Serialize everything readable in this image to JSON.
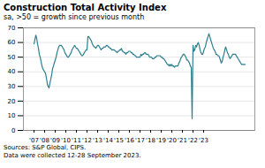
{
  "chart_data": {
    "type": "line",
    "title": "Construction Total Activity Index",
    "subtitle": "sa, >50 = growth since previous month",
    "caption": "Sources: S&P Global, CIPS.\nData were collected 12-28 September 2023.",
    "categories": [
      "'07",
      null,
      null,
      null,
      null,
      null,
      null,
      null,
      null,
      null,
      null,
      null,
      "'08",
      null,
      null,
      null,
      null,
      null,
      null,
      null,
      null,
      null,
      null,
      null,
      "'09",
      null,
      null,
      null,
      null,
      null,
      null,
      null,
      null,
      null,
      null,
      null,
      "'10",
      null,
      null,
      null,
      null,
      null,
      null,
      null,
      null,
      null,
      null,
      null,
      "'11",
      null,
      null,
      null,
      null,
      null,
      null,
      null,
      null,
      null,
      null,
      null,
      "'12",
      null,
      null,
      null,
      null,
      null,
      null,
      null,
      null,
      null,
      null,
      null,
      "'13",
      null,
      null,
      null,
      null,
      null,
      null,
      null,
      null,
      null,
      null,
      null,
      "'14",
      null,
      null,
      null,
      null,
      null,
      null,
      null,
      null,
      null,
      null,
      null,
      "'15",
      null,
      null,
      null,
      null,
      null,
      null,
      null,
      null,
      null,
      null,
      null,
      "'16",
      null,
      null,
      null,
      null,
      null,
      null,
      null,
      null,
      null,
      null,
      null,
      "'17",
      null,
      null,
      null,
      null,
      null,
      null,
      null,
      null,
      null,
      null,
      null,
      "'18",
      null,
      null,
      null,
      null,
      null,
      null,
      null,
      null,
      null,
      null,
      null,
      "'19",
      null,
      null,
      null,
      null,
      null,
      null,
      null,
      null,
      null,
      null,
      null,
      "'20",
      null,
      null,
      null,
      null,
      null,
      null,
      null,
      null,
      null,
      null,
      null,
      "'21",
      null,
      null,
      null,
      null,
      null,
      null,
      null,
      null,
      null,
      null,
      null,
      "'22",
      null,
      null,
      null,
      null,
      null,
      null,
      null,
      null,
      null,
      null,
      null,
      "'23",
      null,
      null,
      null,
      null,
      null,
      null,
      null,
      null,
      null,
      null,
      null,
      null,
      null,
      null,
      null,
      null,
      null,
      null,
      null,
      null,
      null,
      null,
      null,
      null,
      null,
      null,
      null,
      null,
      null,
      null,
      null,
      null,
      null,
      null,
      null,
      null,
      null,
      null,
      null,
      null,
      null,
      null,
      null,
      null,
      null,
      null,
      null
    ],
    "values": [
      59,
      62,
      65,
      63,
      59,
      56,
      52,
      50,
      47,
      44,
      42,
      41,
      40,
      39,
      36,
      32,
      30,
      29,
      32,
      35,
      38,
      42,
      44,
      46,
      48,
      50,
      53,
      55,
      57,
      58,
      58,
      58,
      57,
      56,
      55,
      53,
      52,
      51,
      50,
      50,
      51,
      52,
      53,
      55,
      56,
      57,
      58,
      57,
      56,
      56,
      55,
      54,
      53,
      52,
      51,
      51,
      52,
      53,
      54,
      55,
      55,
      64,
      64,
      63,
      62,
      61,
      59,
      58,
      57,
      57,
      56,
      57,
      58,
      58,
      57,
      56,
      55,
      56,
      56,
      57,
      57,
      57,
      58,
      58,
      57,
      57,
      56,
      56,
      55,
      55,
      55,
      55,
      54,
      54,
      53,
      54,
      54,
      55,
      55,
      56,
      54,
      54,
      53,
      53,
      52,
      53,
      53,
      54,
      54,
      54,
      53,
      53,
      52,
      52,
      51,
      51,
      50,
      50,
      50,
      50,
      50,
      52,
      51,
      52,
      52,
      53,
      53,
      52,
      52,
      52,
      51,
      50,
      50,
      50,
      49,
      49,
      49,
      50,
      50,
      51,
      51,
      51,
      51,
      51,
      50,
      50,
      49,
      49,
      48,
      47,
      46,
      45,
      45,
      44,
      45,
      44,
      45,
      44,
      44,
      43,
      44,
      44,
      44,
      44,
      46,
      47,
      49,
      50,
      51,
      52,
      52,
      51,
      50,
      48,
      48,
      47,
      46,
      44,
      43,
      8,
      58,
      54,
      55,
      58,
      57,
      59,
      60,
      58,
      55,
      53,
      52,
      52,
      54,
      56,
      57,
      60,
      62,
      64,
      66,
      64,
      62,
      60,
      58,
      56,
      55,
      54,
      52,
      52,
      51,
      51,
      50,
      48,
      46,
      47,
      50,
      52,
      55,
      57,
      55,
      53,
      52,
      50,
      49,
      50,
      51,
      52,
      52,
      52,
      52,
      51,
      50,
      49,
      48,
      47,
      46,
      45,
      45,
      45,
      45,
      45
    ],
    "color": "#2b7f8e",
    "ylim": [
      0,
      70
    ],
    "yticks": [
      0,
      10,
      20,
      30,
      40,
      50,
      60,
      70
    ],
    "grid": true
  }
}
